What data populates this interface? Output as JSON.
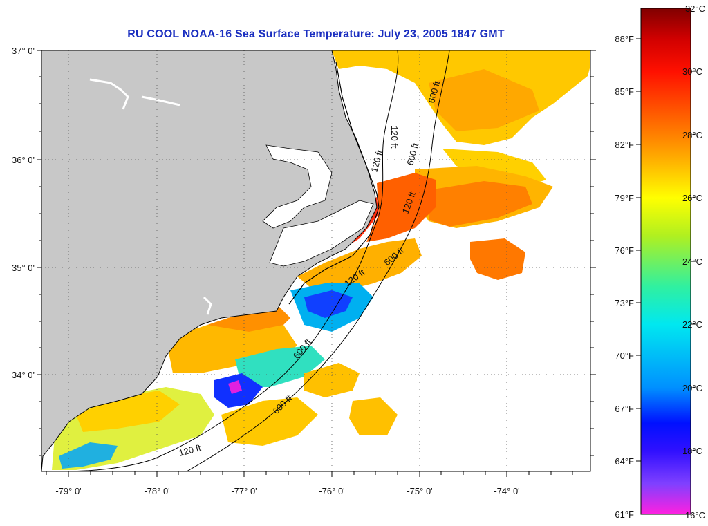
{
  "title": "RU COOL  NOAA-16  Sea Surface Temperature:  July 23, 2005 1847 GMT",
  "map": {
    "lon_labels": [
      "-79° 0'",
      "-78° 0'",
      "-77° 0'",
      "-76° 0'",
      "-75° 0'",
      "-74° 0'"
    ],
    "lat_labels": [
      "37° 0'",
      "36° 0'",
      "35° 0'",
      "34° 0'"
    ],
    "lon_range": [
      -79.3,
      -73.0
    ],
    "lat_range": [
      33.1,
      37.0
    ],
    "grid": true,
    "land_color": "#c8c8c8",
    "contour_labels": [
      "120 ft",
      "600 ft",
      "120 ft",
      "600 ft",
      "120 ft",
      "600 ft",
      "120 ft",
      "600 ft",
      "120 ft",
      "600 ft"
    ]
  },
  "colorbar": {
    "fahrenheit_labels": [
      "88°F",
      "85°F",
      "82°F",
      "79°F",
      "76°F",
      "73°F",
      "70°F",
      "67°F",
      "64°F",
      "61°F"
    ],
    "celsius_labels": [
      "32°C",
      "30°C",
      "28°C",
      "26°C",
      "24°C",
      "22°C",
      "20°C",
      "18°C",
      "16°C"
    ],
    "range_c": [
      16,
      32
    ],
    "colors": [
      "#ff20e0",
      "#8040ff",
      "#0010ff",
      "#0090ff",
      "#00e8f0",
      "#30f0a0",
      "#b0f020",
      "#ffff00",
      "#ffb000",
      "#ff7000",
      "#ff1000",
      "#d00000",
      "#800000"
    ]
  }
}
